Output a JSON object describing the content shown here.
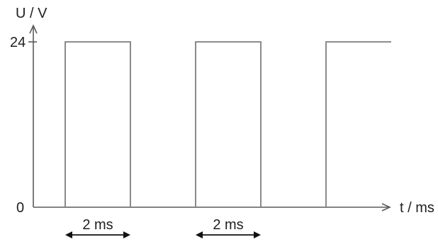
{
  "chart_data": {
    "type": "line",
    "title": "",
    "ylabel": "U / V",
    "xlabel": "t / ms",
    "yticks": [
      {
        "value": 24,
        "label": "24"
      },
      {
        "value": 0,
        "label": "0"
      }
    ],
    "ylim": [
      0,
      24
    ],
    "xlim": [
      -1,
      10
    ],
    "grid": false,
    "series": [
      {
        "points": [
          [
            0,
            0
          ],
          [
            0,
            24
          ],
          [
            2,
            24
          ],
          [
            2,
            0
          ],
          [
            4,
            0
          ],
          [
            4,
            24
          ],
          [
            6,
            24
          ],
          [
            6,
            0
          ],
          [
            8,
            0
          ],
          [
            8,
            24
          ],
          [
            10,
            24
          ]
        ]
      }
    ],
    "annotations": [
      {
        "text": "2 ms",
        "from": 0,
        "to": 2
      },
      {
        "text": "2 ms",
        "from": 4,
        "to": 6
      }
    ]
  },
  "colors": {
    "axis": "#5c5c5c",
    "wave": "#7d7d7d",
    "arrow": "#111111",
    "text": "#1f1f1f"
  }
}
